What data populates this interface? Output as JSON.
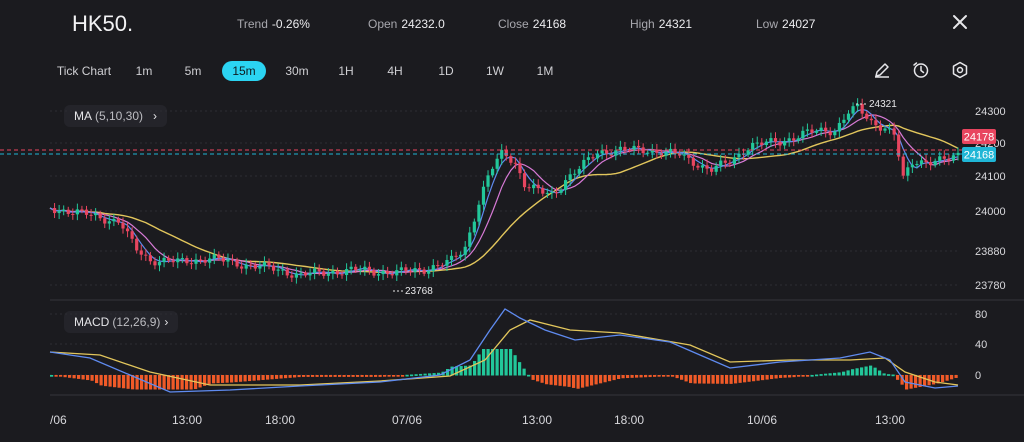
{
  "header": {
    "symbol": "HK50.",
    "trend_label": "Trend",
    "trend_value": "-0.26%",
    "open_label": "Open",
    "open_value": "24232.0",
    "close_label": "Close",
    "close_value": "24168",
    "high_label": "High",
    "high_value": "24321",
    "low_label": "Low",
    "low_value": "24027"
  },
  "timeframes": [
    "Tick Chart",
    "1m",
    "5m",
    "15m",
    "30m",
    "1H",
    "4H",
    "1D",
    "1W",
    "1M"
  ],
  "active_timeframe": "15m",
  "toolbar_icons": [
    "pencil-icon",
    "timer-icon",
    "settings-hex-icon"
  ],
  "ma_indicator": {
    "label": "MA",
    "params": "(5,10,30)"
  },
  "macd_indicator": {
    "label": "MACD",
    "params": "(12,26,9)"
  },
  "price_axis": [
    "24300",
    "24200",
    "24100",
    "24000",
    "23880",
    "23780"
  ],
  "price_tags": {
    "current": "24178",
    "close": "24168"
  },
  "high_marker": "24321",
  "low_marker": "23768",
  "macd_axis": [
    "80",
    "40",
    "0"
  ],
  "time_axis": [
    "/06",
    "13:00",
    "18:00",
    "07/06",
    "13:00",
    "18:00",
    "10/06",
    "13:00"
  ],
  "colors": {
    "up": "#22c79a",
    "down": "#e8455f",
    "ma5": "#5f8bf0",
    "ma10": "#d77ad6",
    "ma30": "#e2c65c",
    "active": "#2bd4f2",
    "hist_up": "#22c79a",
    "hist_down": "#f05a28",
    "current_tag": "#e8455f",
    "close_tag": "#1fb6d6"
  }
}
